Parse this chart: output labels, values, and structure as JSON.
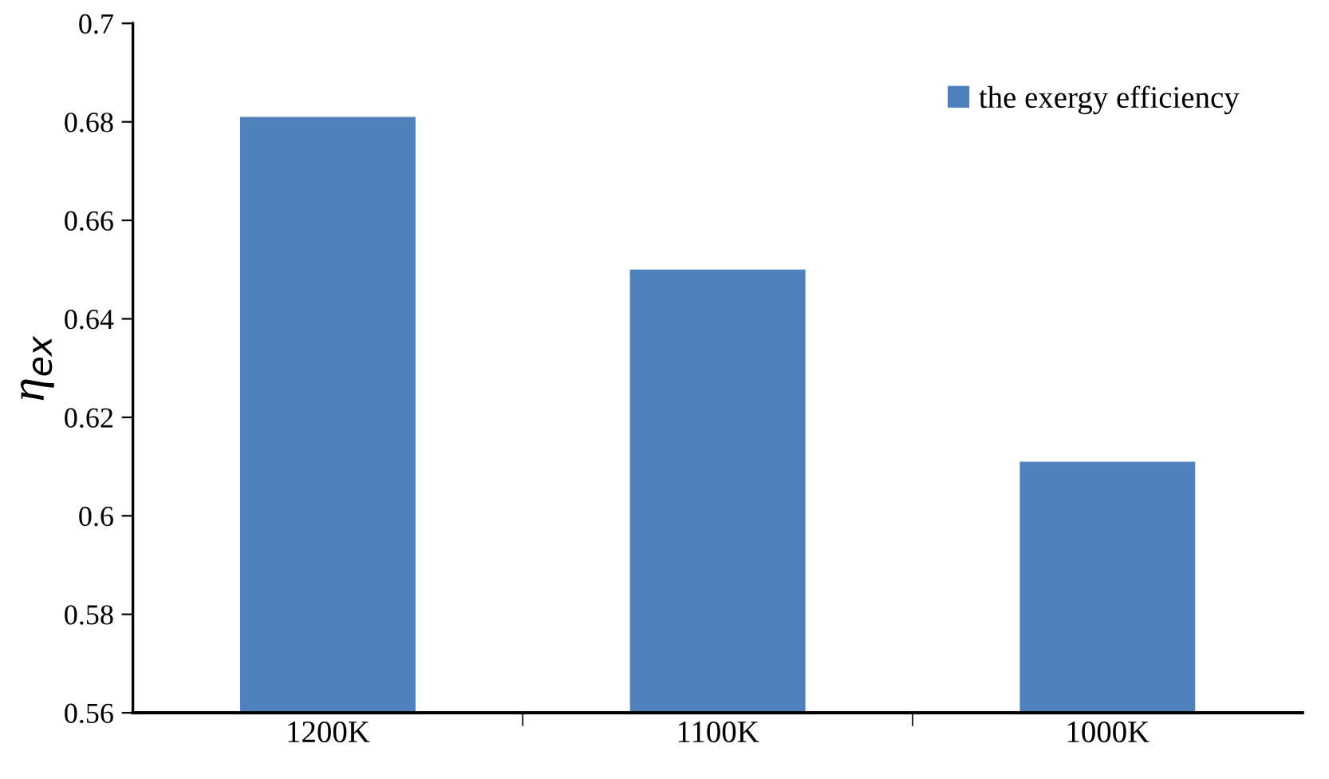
{
  "chart_data": {
    "type": "bar",
    "ylabel": "η$_{ex}$",
    "categories": [
      "1200K",
      "1100K",
      "1000K"
    ],
    "series": [
      {
        "name": "the exergy efficiency",
        "color": "#4f81bd",
        "values": [
          0.681,
          0.65,
          0.611
        ]
      }
    ],
    "ylim": [
      0.56,
      0.7
    ],
    "yticks": [
      0.56,
      0.58,
      0.6,
      0.62,
      0.64,
      0.66,
      0.68,
      0.7
    ],
    "grid": false,
    "legend": "top right"
  }
}
